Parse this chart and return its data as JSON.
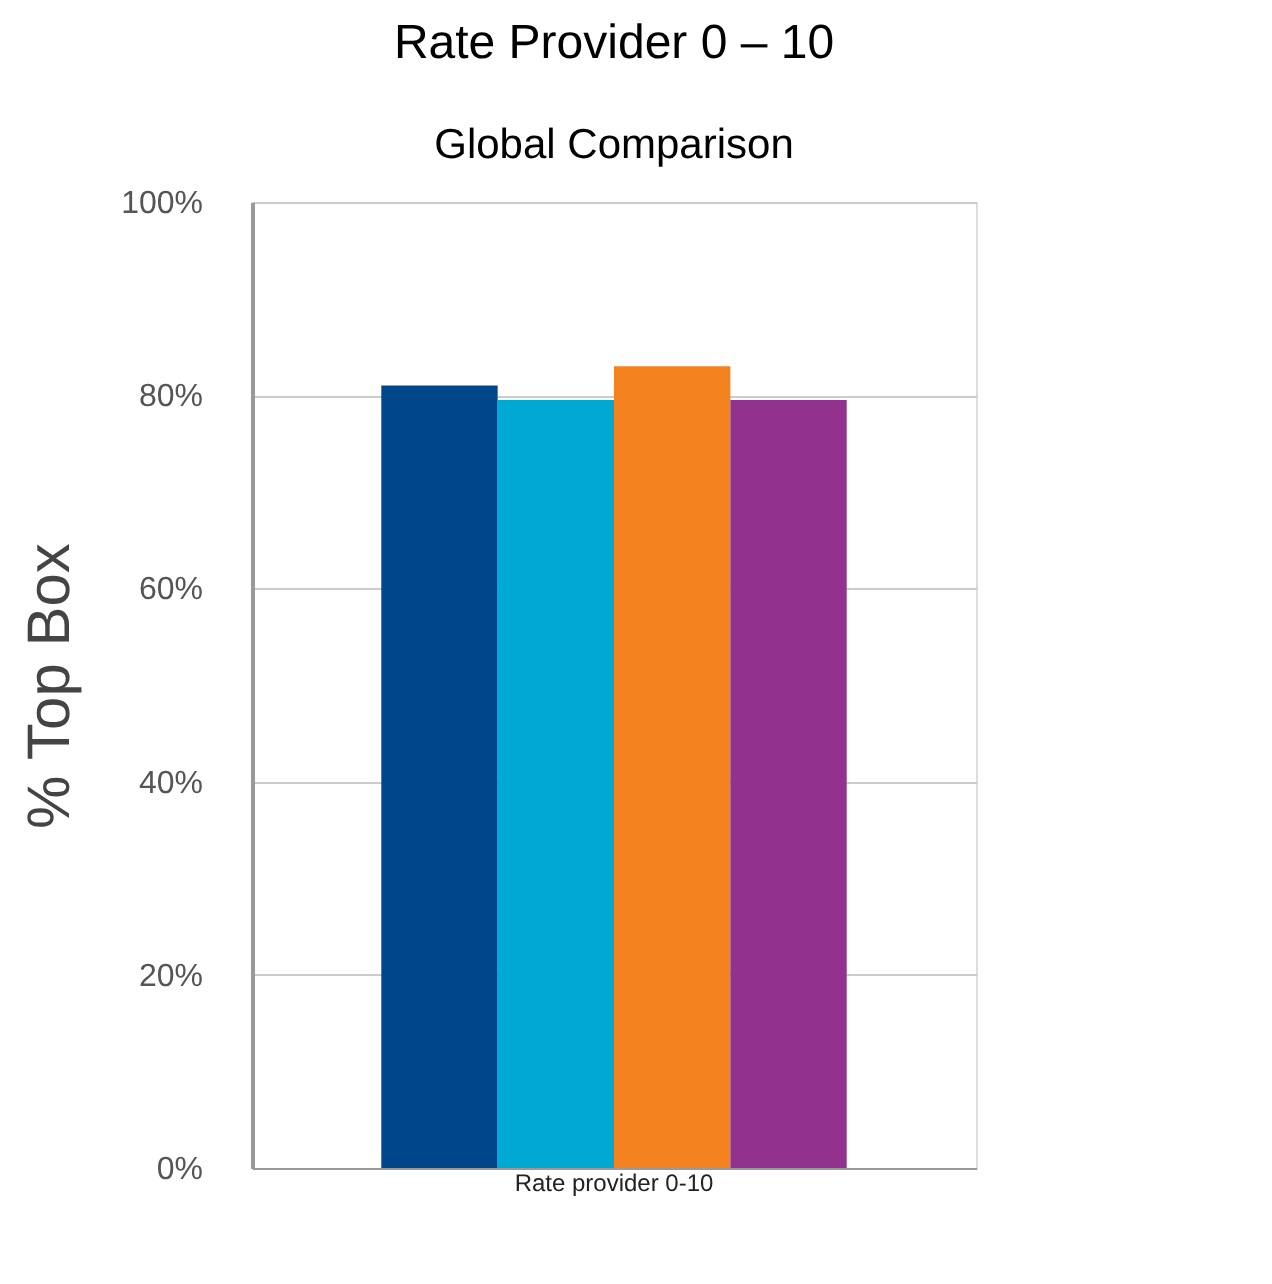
{
  "chart_data": {
    "type": "bar",
    "title": "Rate Provider 0 – 10",
    "subtitle": "Global Comparison",
    "ylabel": "% Top Box",
    "categories": [
      "Rate provider 0-10"
    ],
    "series": [
      {
        "color": "#00468b",
        "values": [
          81
        ]
      },
      {
        "color": "#00a8d4",
        "values": [
          79.5
        ]
      },
      {
        "color": "#f4821f",
        "values": [
          83
        ]
      },
      {
        "color": "#93328e",
        "values": [
          79.5
        ]
      }
    ],
    "ylim": [
      0,
      100
    ],
    "yticks": [
      {
        "value": 0,
        "label": "0%"
      },
      {
        "value": 20,
        "label": "20%"
      },
      {
        "value": 40,
        "label": "40%"
      },
      {
        "value": 60,
        "label": "60%"
      },
      {
        "value": 80,
        "label": "80%"
      },
      {
        "value": 100,
        "label": "100%"
      }
    ],
    "grid": "y",
    "legend": false
  }
}
